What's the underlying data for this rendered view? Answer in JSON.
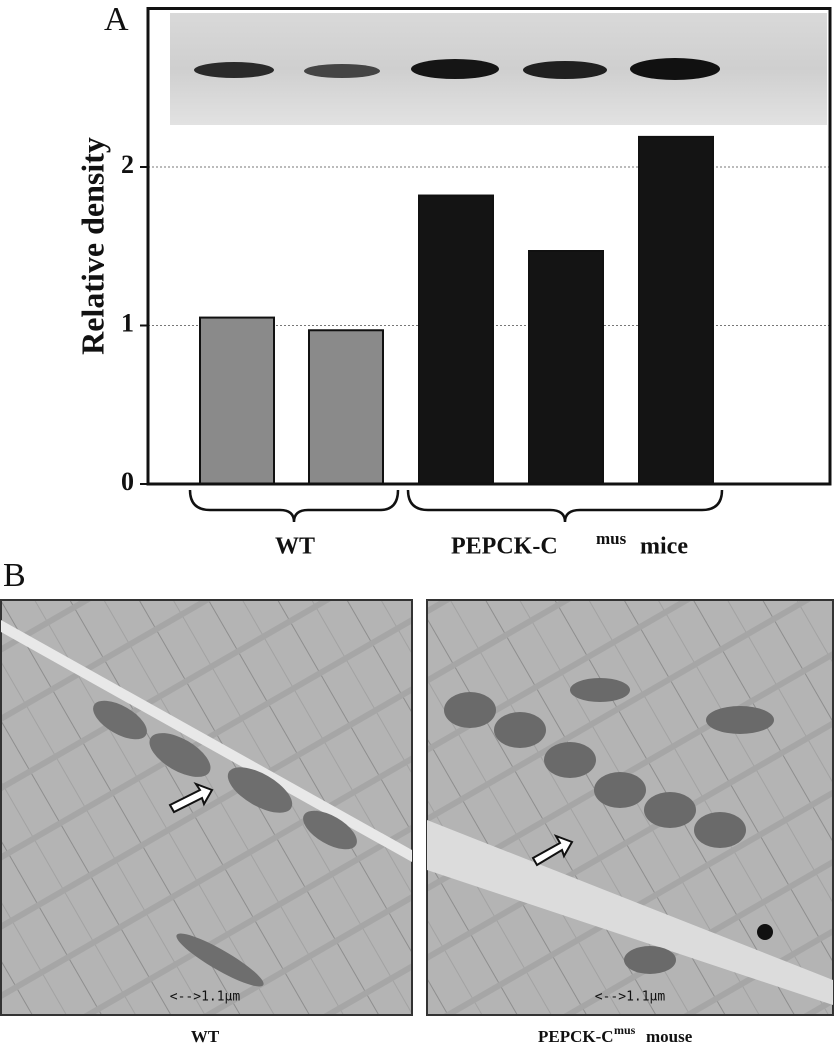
{
  "chart_data": {
    "type": "bar",
    "panel_labels": [
      "A",
      "B"
    ],
    "y_label": "Relative density",
    "categories": [
      null,
      null,
      null,
      null,
      null
    ],
    "values": [
      1.05,
      0.97,
      1.82,
      1.47,
      2.19
    ],
    "colors": [
      "#8a8a8a",
      "#8a8a8a",
      "#141414",
      "#141414",
      "#141414"
    ],
    "ylim": [
      0,
      3
    ],
    "yticks": [
      0,
      1,
      2
    ],
    "grid": true,
    "groups": [
      {
        "label": "WT"
      },
      {
        "label": "PEPCK-C",
        "superscript": "mus",
        "suffix": "mice"
      }
    ],
    "micrographs": [
      {
        "caption": "WT",
        "scale_label": "<-->1.1µm"
      },
      {
        "caption": "PEPCK-C",
        "superscript": "mus",
        "suffix": "mouse",
        "scale_label": "<-->1.1µm"
      }
    ]
  }
}
